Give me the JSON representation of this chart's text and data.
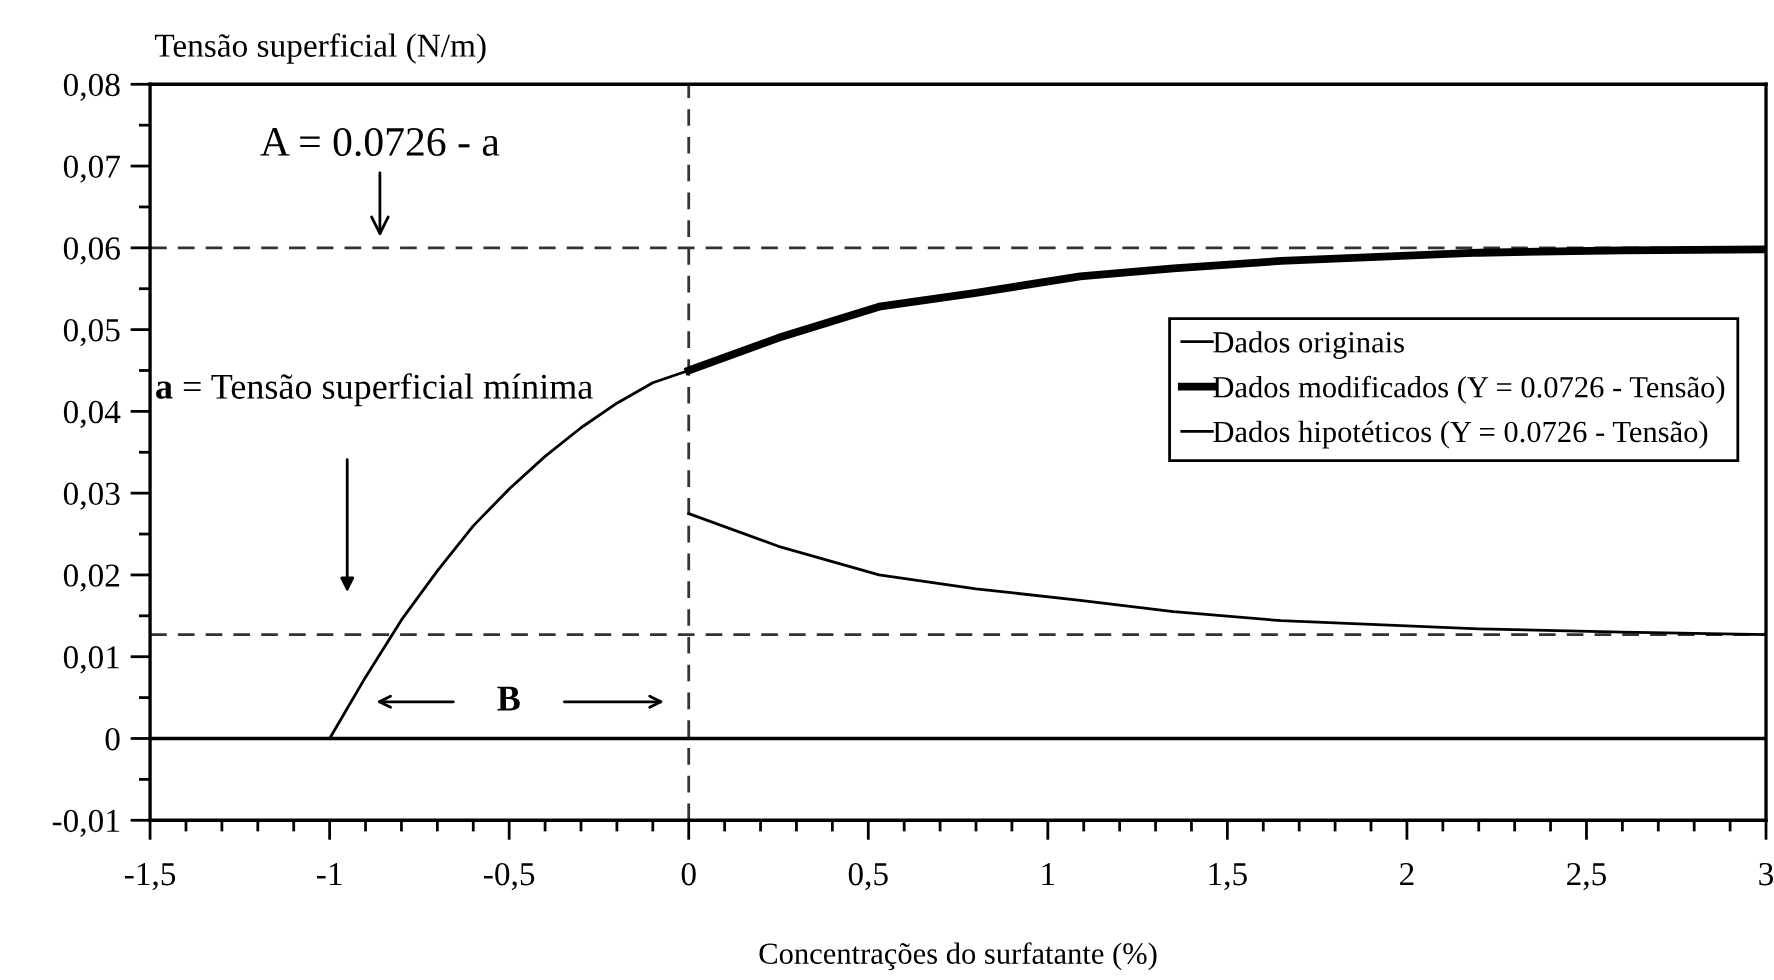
{
  "chart_data": {
    "type": "line",
    "ylabel": "Tensão superficial (N/m)",
    "xlabel": "Concentrações do surfatante (%)",
    "xlim": [
      -1.5,
      3
    ],
    "ylim": [
      -0.01,
      0.08
    ],
    "xticks": [
      {
        "value": -1.5,
        "label": "-1,5"
      },
      -1,
      {
        "value": -0.5,
        "label": "-0,5"
      },
      0,
      {
        "value": 0.5,
        "label": "0,5"
      },
      1,
      {
        "value": 1.5,
        "label": "1,5"
      },
      2,
      {
        "value": 2.5,
        "label": "2,5"
      },
      3
    ],
    "yticks": [
      {
        "value": -0.01,
        "label": "-0,01"
      },
      0,
      {
        "value": 0.01,
        "label": "0,01"
      },
      {
        "value": 0.02,
        "label": "0,02"
      },
      {
        "value": 0.03,
        "label": "0,03"
      },
      {
        "value": 0.04,
        "label": "0,04"
      },
      {
        "value": 0.05,
        "label": "0,05"
      },
      {
        "value": 0.06,
        "label": "0,06"
      },
      {
        "value": 0.07,
        "label": "0,07"
      },
      {
        "value": 0.08,
        "label": "0,08"
      }
    ],
    "grid": false,
    "legend": "right",
    "marker": "none",
    "series": [
      {
        "name": "Dados originais",
        "color": "#000000",
        "x": [
          0,
          0.25,
          0.53,
          0.8,
          1.09,
          1.35,
          1.65,
          2.2,
          2.6,
          3
        ],
        "values": [
          0.0275,
          0.0235,
          0.02,
          0.0183,
          0.0169,
          0.0155,
          0.0144,
          0.0134,
          0.013,
          0.0127
        ]
      },
      {
        "name": "Dados modificados (Y = 0.0726 - Tensão)",
        "color": "#000000",
        "x": [
          0,
          0.25,
          0.53,
          0.8,
          1.09,
          1.35,
          1.65,
          2.2,
          2.6,
          3
        ],
        "values": [
          0.045,
          0.049,
          0.0528,
          0.0545,
          0.0565,
          0.0575,
          0.0584,
          0.0594,
          0.0597,
          0.0598
        ]
      },
      {
        "name": "Dados hipotéticos (Y = 0.0726 - Tensão)",
        "color": "#000000",
        "x": [
          -1,
          -0.9,
          -0.8,
          -0.7,
          -0.6,
          -0.5,
          -0.4,
          -0.3,
          -0.2,
          -0.1,
          0
        ],
        "values": [
          0,
          0.0075,
          0.0145,
          0.0205,
          0.026,
          0.0305,
          0.0345,
          0.038,
          0.041,
          0.0435,
          0.045
        ]
      }
    ],
    "ref_lines": [
      {
        "axis": "y",
        "value": 0.06,
        "line_style": "dashed"
      },
      {
        "axis": "y",
        "value": 0.0127,
        "line_style": "dashed"
      },
      {
        "axis": "x",
        "value": 0,
        "line_style": "dashed"
      },
      {
        "axis": "y",
        "value": 0,
        "line_style": "solid"
      }
    ],
    "annotations": [
      {
        "text": "A = 0.0726 - a",
        "x": -0.86,
        "y": 0.06
      },
      "a = Tensão superficial mínima",
      "B"
    ]
  }
}
